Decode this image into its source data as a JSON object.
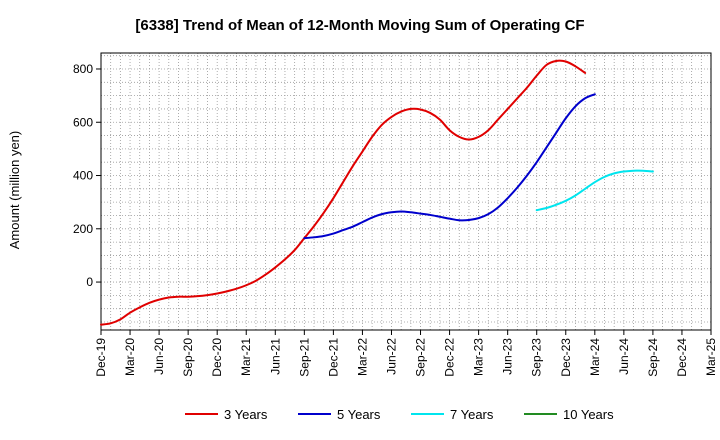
{
  "chart_data": {
    "type": "line",
    "title": "[6338]  Trend of Mean of 12-Month Moving Sum of Operating CF",
    "xlabel": "",
    "ylabel": "Amount (million yen)",
    "ylim": [
      -180,
      860
    ],
    "yticks": [
      0,
      200,
      400,
      600,
      800
    ],
    "grid": true,
    "legend_position": "bottom",
    "x_ticks": [
      "Dec-19",
      "Mar-20",
      "Jun-20",
      "Sep-20",
      "Dec-20",
      "Mar-21",
      "Jun-21",
      "Sep-21",
      "Dec-21",
      "Mar-22",
      "Jun-22",
      "Sep-22",
      "Dec-22",
      "Mar-23",
      "Jun-23",
      "Sep-23",
      "Dec-23",
      "Mar-24",
      "Jun-24",
      "Sep-24",
      "Dec-24",
      "Mar-25"
    ],
    "series": [
      {
        "name": "3 Years",
        "color": "#e00000",
        "start_index": 0,
        "values": [
          -160,
          -155,
          -140,
          -115,
          -95,
          -78,
          -66,
          -58,
          -55,
          -55,
          -53,
          -49,
          -43,
          -35,
          -25,
          -12,
          5,
          28,
          55,
          85,
          120,
          165,
          210,
          260,
          315,
          375,
          435,
          490,
          545,
          590,
          620,
          640,
          650,
          648,
          635,
          610,
          570,
          545,
          535,
          545,
          570,
          610,
          650,
          690,
          730,
          775,
          815,
          830,
          828,
          810,
          785
        ]
      },
      {
        "name": "5 Years",
        "color": "#0000cc",
        "start_index": 21,
        "values": [
          165,
          168,
          173,
          182,
          195,
          208,
          225,
          242,
          255,
          262,
          265,
          262,
          257,
          252,
          245,
          238,
          232,
          233,
          240,
          255,
          280,
          315,
          355,
          400,
          450,
          505,
          560,
          615,
          660,
          690,
          705
        ]
      },
      {
        "name": "7 Years",
        "color": "#00e5ee",
        "start_index": 45,
        "values": [
          270,
          278,
          290,
          305,
          325,
          350,
          375,
          395,
          408,
          415,
          418,
          418,
          415
        ]
      },
      {
        "name": "10 Years",
        "color": "#228b22",
        "start_index": 0,
        "values": []
      }
    ]
  }
}
